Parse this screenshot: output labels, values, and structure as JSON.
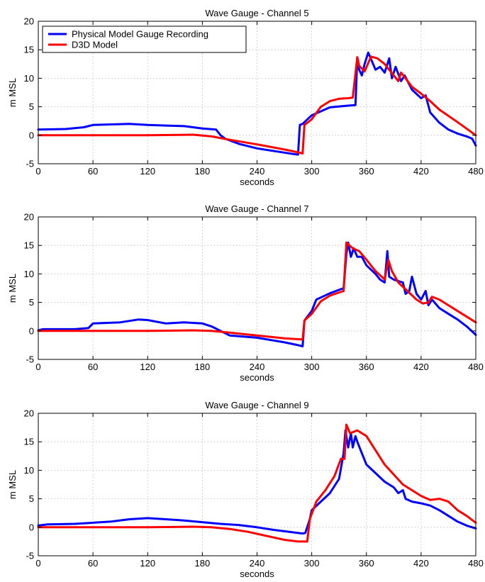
{
  "chart_data": [
    {
      "type": "line",
      "title": "Wave Gauge - Channel 5",
      "xlabel": "seconds",
      "ylabel": "m MSL",
      "xlim": [
        0,
        480
      ],
      "ylim": [
        -5,
        20
      ],
      "xticks": [
        0,
        60,
        120,
        180,
        240,
        300,
        360,
        420,
        480
      ],
      "yticks": [
        -5,
        0,
        5,
        10,
        15,
        20
      ],
      "grid": true,
      "legend": "top-left",
      "series": [
        {
          "name": "Physical Model Gauge Recording",
          "color": "#0000ff",
          "x": [
            0,
            30,
            50,
            60,
            80,
            100,
            120,
            140,
            160,
            180,
            195,
            200,
            205,
            220,
            240,
            260,
            280,
            285,
            287,
            290,
            300,
            320,
            340,
            348,
            350,
            352,
            355,
            358,
            362,
            366,
            370,
            375,
            380,
            385,
            388,
            392,
            398,
            402,
            410,
            420,
            425,
            430,
            440,
            450,
            460,
            470,
            476,
            480
          ],
          "y": [
            1.0,
            1.1,
            1.4,
            1.8,
            1.9,
            2.0,
            1.8,
            1.7,
            1.6,
            1.2,
            1.0,
            0.0,
            -0.6,
            -1.5,
            -2.3,
            -2.8,
            -3.3,
            -3.4,
            1.8,
            2.0,
            3.5,
            4.9,
            5.2,
            5.3,
            13.7,
            11.5,
            10.5,
            12.5,
            14.5,
            13.0,
            11.5,
            12.0,
            11.0,
            13.5,
            10.0,
            12.0,
            9.5,
            10.5,
            8.0,
            6.5,
            7.0,
            4.0,
            2.2,
            1.0,
            0.3,
            -0.2,
            -0.6,
            -1.8
          ]
        },
        {
          "name": "D3D Model",
          "color": "#ff0000",
          "x": [
            0,
            60,
            120,
            170,
            190,
            210,
            240,
            270,
            285,
            290,
            292,
            300,
            310,
            320,
            330,
            340,
            345,
            350,
            352,
            358,
            365,
            372,
            380,
            390,
            395,
            398,
            402,
            410,
            420,
            430,
            440,
            460,
            480
          ],
          "y": [
            0.0,
            0.0,
            0.0,
            0.1,
            -0.2,
            -0.8,
            -1.6,
            -2.5,
            -3.0,
            -3.2,
            1.8,
            2.8,
            5.0,
            6.0,
            6.4,
            6.5,
            6.6,
            13.7,
            12.2,
            11.2,
            13.8,
            13.5,
            12.5,
            10.5,
            9.5,
            11.0,
            10.2,
            8.5,
            7.3,
            6.0,
            4.5,
            2.3,
            0.0
          ]
        }
      ]
    },
    {
      "type": "line",
      "title": "Wave Gauge - Channel 7",
      "xlabel": "seconds",
      "ylabel": "m MSL",
      "xlim": [
        0,
        480
      ],
      "ylim": [
        -5,
        20
      ],
      "xticks": [
        0,
        60,
        120,
        180,
        240,
        300,
        360,
        420,
        480
      ],
      "yticks": [
        -5,
        0,
        5,
        10,
        15,
        20
      ],
      "grid": true,
      "series": [
        {
          "name": "Physical Model Gauge Recording",
          "color": "#0000ff",
          "x": [
            0,
            5,
            40,
            55,
            60,
            90,
            110,
            120,
            140,
            160,
            180,
            190,
            200,
            210,
            240,
            270,
            285,
            290,
            292,
            300,
            305,
            320,
            335,
            338,
            340,
            343,
            346,
            350,
            355,
            360,
            370,
            375,
            380,
            383,
            385,
            390,
            400,
            403,
            407,
            410,
            415,
            420,
            425,
            428,
            432,
            440,
            450,
            460,
            470,
            480
          ],
          "y": [
            0.1,
            0.3,
            0.3,
            0.5,
            1.3,
            1.5,
            2.0,
            1.9,
            1.3,
            1.5,
            1.3,
            0.8,
            0.0,
            -0.8,
            -1.2,
            -2.0,
            -2.5,
            -2.7,
            1.8,
            3.5,
            5.5,
            6.6,
            7.5,
            13.5,
            15.5,
            13.0,
            14.5,
            13.0,
            13.0,
            11.5,
            10.0,
            9.0,
            8.5,
            14.0,
            9.5,
            9.0,
            8.5,
            6.5,
            7.0,
            9.5,
            6.5,
            5.5,
            7.0,
            4.5,
            5.5,
            4.0,
            3.0,
            2.0,
            0.8,
            -0.7
          ]
        },
        {
          "name": "D3D Model",
          "color": "#ff0000",
          "x": [
            0,
            60,
            120,
            170,
            190,
            210,
            240,
            270,
            290,
            292,
            300,
            310,
            320,
            335,
            338,
            340,
            345,
            352,
            360,
            370,
            380,
            384,
            388,
            395,
            405,
            415,
            422,
            428,
            432,
            440,
            450,
            460,
            480
          ],
          "y": [
            0.0,
            0.0,
            0.0,
            0.1,
            0.0,
            -0.3,
            -0.8,
            -1.3,
            -1.5,
            1.8,
            3.0,
            5.2,
            6.2,
            7.0,
            15.5,
            15.2,
            14.5,
            14.0,
            12.5,
            10.5,
            9.0,
            12.5,
            10.5,
            8.5,
            7.0,
            5.5,
            4.8,
            5.0,
            6.0,
            5.5,
            4.5,
            3.5,
            1.5
          ]
        }
      ]
    },
    {
      "type": "line",
      "title": "Wave Gauge - Channel 9",
      "xlabel": "seconds",
      "ylabel": "m MSL",
      "xlim": [
        0,
        480
      ],
      "ylim": [
        -5,
        20
      ],
      "xticks": [
        0,
        60,
        120,
        180,
        240,
        300,
        360,
        420,
        480
      ],
      "yticks": [
        -5,
        0,
        5,
        10,
        15,
        20
      ],
      "grid": true,
      "series": [
        {
          "name": "Physical Model Gauge Recording",
          "color": "#0000ff",
          "x": [
            0,
            10,
            40,
            60,
            80,
            100,
            120,
            140,
            160,
            180,
            200,
            220,
            240,
            260,
            280,
            290,
            293,
            298,
            300,
            310,
            320,
            330,
            335,
            337,
            340,
            343,
            345,
            348,
            350,
            355,
            360,
            370,
            380,
            390,
            395,
            400,
            403,
            410,
            420,
            430,
            440,
            450,
            460,
            470,
            480
          ],
          "y": [
            0.3,
            0.5,
            0.6,
            0.8,
            1.0,
            1.4,
            1.6,
            1.4,
            1.2,
            0.9,
            0.6,
            0.4,
            0.0,
            -0.5,
            -0.9,
            -1.1,
            -1.0,
            1.5,
            3.0,
            4.5,
            6.0,
            8.5,
            13.0,
            17.0,
            14.0,
            16.5,
            14.0,
            16.0,
            15.0,
            13.0,
            11.0,
            9.5,
            8.0,
            7.0,
            6.0,
            6.5,
            5.0,
            4.5,
            4.2,
            3.8,
            3.0,
            2.0,
            1.0,
            0.3,
            -0.2
          ]
        },
        {
          "name": "D3D Model",
          "color": "#ff0000",
          "x": [
            0,
            60,
            120,
            170,
            190,
            210,
            230,
            250,
            270,
            285,
            295,
            298,
            305,
            315,
            325,
            332,
            336,
            338,
            342,
            350,
            360,
            380,
            400,
            410,
            420,
            430,
            440,
            450,
            460,
            470,
            480
          ],
          "y": [
            0.0,
            0.0,
            0.0,
            0.1,
            0.0,
            -0.3,
            -0.8,
            -1.5,
            -2.2,
            -2.5,
            -2.5,
            1.5,
            4.5,
            6.5,
            9.0,
            12.0,
            12.0,
            18.0,
            16.5,
            17.0,
            16.0,
            11.0,
            7.5,
            6.5,
            5.5,
            4.8,
            5.0,
            4.5,
            3.0,
            2.0,
            0.8
          ]
        }
      ]
    }
  ]
}
